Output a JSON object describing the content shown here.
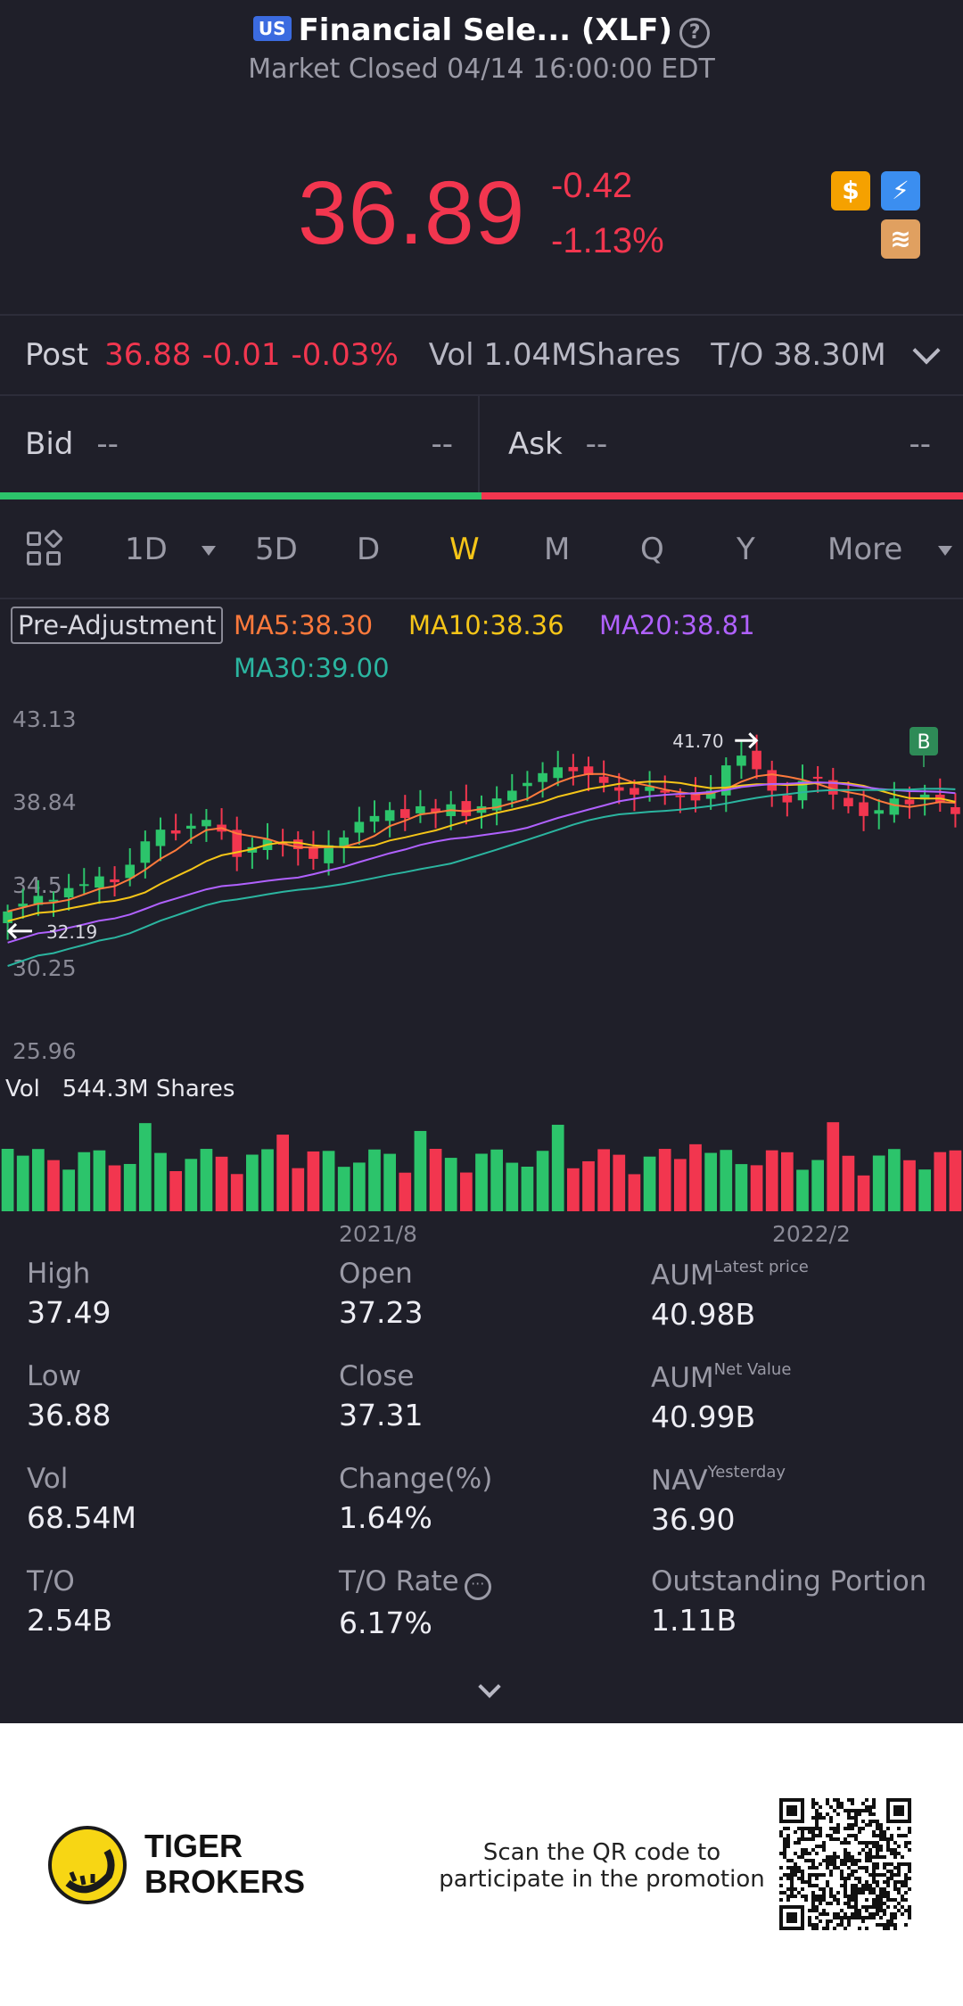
{
  "header": {
    "region_badge": "US",
    "title": "Financial Sele... (XLF)",
    "status": "Market Closed 04/14 16:00:00 EDT",
    "price": "36.89",
    "change": "-0.42",
    "change_pct": "-1.13%"
  },
  "post": {
    "label": "Post",
    "price": "36.88",
    "change": "-0.01",
    "change_pct": "-0.03%",
    "vol": "Vol 1.04MShares",
    "turnover": "T/O 38.30M"
  },
  "bidask": {
    "bid_label": "Bid",
    "bid_value": "--",
    "bid_size": "--",
    "ask_label": "Ask",
    "ask_value": "--",
    "ask_size": "--"
  },
  "tabs": [
    "1D",
    "5D",
    "D",
    "W",
    "M",
    "Q",
    "Y",
    "More"
  ],
  "active_tab": "W",
  "indicators": {
    "pre_adjustment": "Pre-Adjustment",
    "ma5": "MA5:38.30",
    "ma10": "MA10:38.36",
    "ma20": "MA20:38.81",
    "ma30": "MA30:39.00"
  },
  "colors": {
    "up": "#2cc46b",
    "down": "#f2364f",
    "ma5": "#ff7a3c",
    "ma10": "#f5c518",
    "ma20": "#b061ff",
    "ma30": "#2bb5a0"
  },
  "chart_data": {
    "type": "candlestick",
    "y_ticks": [
      "43.13",
      "38.84",
      "34.5",
      "30.25",
      "25.96"
    ],
    "ylim": [
      25.96,
      43.13
    ],
    "x_ticks": [
      "2021/8",
      "2022/2"
    ],
    "annotations": {
      "high": "41.70",
      "low": "32.19",
      "signal": "B"
    },
    "volume_label": "Vol",
    "volume_value": "544.3M Shares"
  },
  "stats": [
    {
      "key": "High",
      "value": "37.49"
    },
    {
      "key": "Open",
      "value": "37.23"
    },
    {
      "key": "AUM",
      "sup": "Latest price",
      "value": "40.98B"
    },
    {
      "key": "Low",
      "value": "36.88"
    },
    {
      "key": "Close",
      "value": "37.31"
    },
    {
      "key": "AUM",
      "sup": "Net Value",
      "value": "40.99B"
    },
    {
      "key": "Vol",
      "value": "68.54M"
    },
    {
      "key": "Change(%)",
      "value": "1.64%"
    },
    {
      "key": "NAV",
      "sup": "Yesterday",
      "value": "36.90"
    },
    {
      "key": "T/O",
      "value": "2.54B"
    },
    {
      "key": "T/O Rate",
      "value": "6.17%"
    },
    {
      "key": "Outstanding Portion",
      "value": "1.11B"
    }
  ],
  "footer": {
    "brand_line1": "TIGER",
    "brand_line2": "BROKERS",
    "promo_line1": "Scan the QR code to",
    "promo_line2": "participate in the promotion"
  },
  "icons": [
    "help-icon",
    "dollar-icon",
    "lightning-icon",
    "layers-icon",
    "chevron-down-icon",
    "grid-icon",
    "info-icon"
  ]
}
